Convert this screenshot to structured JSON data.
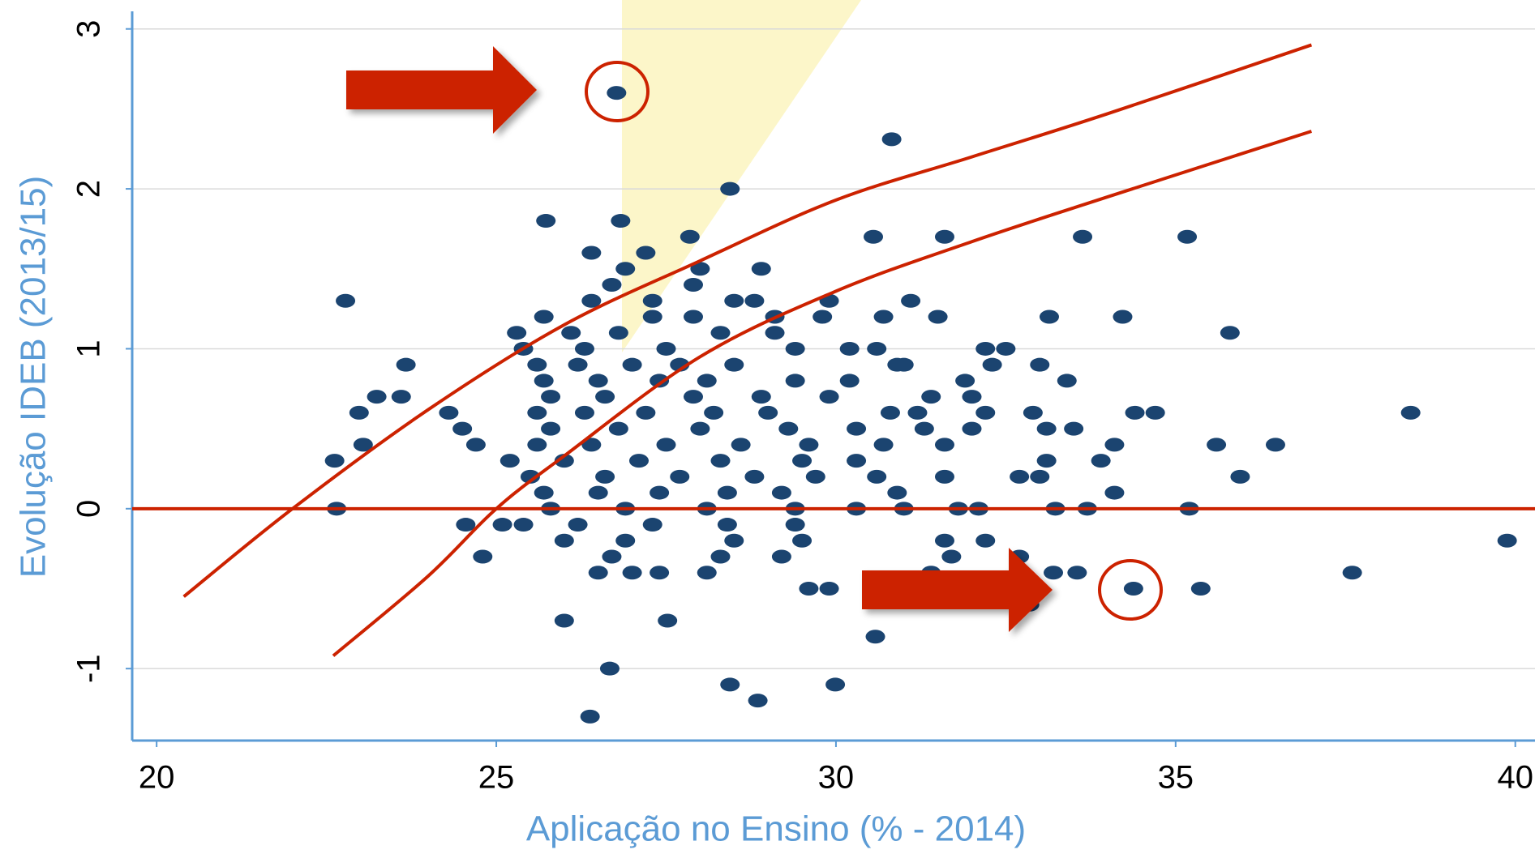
{
  "chart_data": {
    "type": "scatter",
    "x_label": "Aplicação no Ensino (% - 2014)",
    "y_label": "Evolução IDEB (2013/15)",
    "xlim": [
      19.64,
      40.29
    ],
    "ylim": [
      -1.45,
      3.11
    ],
    "xticks": [
      20,
      25,
      30,
      35,
      40
    ],
    "yticks": [
      -1,
      0,
      1,
      2,
      3
    ],
    "grid": true,
    "hline": {
      "value": 0,
      "color": "#cc2200"
    },
    "series": [
      {
        "type": "scatter",
        "color": "#1b4470",
        "x": [
          26.77,
          30.82,
          28.44,
          25.73,
          26.83,
          22.78,
          30.55,
          31.6,
          33.63,
          35.17,
          35.8,
          38.46,
          39.88,
          37.6,
          34.38,
          35.37,
          30.58,
          29.99,
          28.44,
          28.85,
          26.38,
          26.67,
          26.0,
          27.52,
          36.47,
          35.6,
          35.95,
          34.7,
          34.4,
          34.22,
          33.14,
          23.67,
          23.24,
          23.6,
          22.98,
          23.04,
          22.62,
          22.65,
          24.8,
          24.55,
          25.09,
          35.2,
          33.23,
          33.7,
          33.2,
          33.55,
          32.85,
          26.4,
          27.2,
          27.85,
          26.9,
          28.9,
          28.0,
          26.7,
          27.9,
          28.5,
          28.8,
          29.9,
          26.4,
          27.3,
          31.1,
          25.7,
          27.3,
          27.9,
          29.1,
          29.8,
          30.7,
          31.5,
          25.3,
          26.1,
          26.8,
          28.3,
          29.1,
          25.4,
          26.3,
          27.5,
          29.4,
          30.2,
          30.6,
          32.2,
          32.5,
          32.3,
          33.0,
          30.9,
          31.0,
          25.6,
          26.2,
          27.0,
          27.7,
          28.5,
          25.7,
          26.5,
          27.4,
          28.1,
          29.4,
          30.2,
          31.9,
          33.4,
          25.8,
          26.6,
          27.9,
          28.9,
          29.9,
          31.4,
          32.0,
          24.3,
          25.6,
          26.3,
          27.2,
          28.2,
          29.0,
          30.8,
          31.2,
          32.2,
          32.9,
          24.5,
          25.8,
          26.8,
          28.0,
          29.3,
          30.3,
          31.3,
          32.0,
          33.1,
          33.5,
          24.7,
          25.6,
          26.4,
          27.5,
          28.6,
          29.6,
          30.7,
          31.6,
          34.1,
          25.2,
          26.0,
          27.1,
          28.3,
          29.5,
          30.3,
          33.1,
          33.9,
          25.5,
          26.6,
          27.7,
          28.8,
          29.7,
          30.6,
          31.6,
          32.7,
          33.0,
          25.7,
          26.5,
          27.4,
          28.4,
          29.2,
          30.9,
          34.1,
          25.8,
          26.9,
          28.1,
          29.4,
          30.3,
          31.0,
          31.8,
          32.1,
          25.4,
          26.2,
          27.3,
          28.4,
          29.4,
          26.0,
          26.9,
          28.5,
          29.5,
          31.6,
          32.2,
          26.7,
          28.3,
          29.2,
          31.7,
          32.7,
          26.5,
          27.0,
          27.4,
          28.1,
          31.4,
          29.6,
          29.9
        ],
        "values": [
          2.6,
          2.31,
          2.0,
          1.8,
          1.8,
          1.3,
          1.7,
          1.7,
          1.7,
          1.7,
          1.1,
          0.6,
          -0.2,
          -0.4,
          -0.5,
          -0.5,
          -0.8,
          -1.1,
          -1.1,
          -1.2,
          -1.3,
          -1.0,
          -0.7,
          -0.7,
          0.4,
          0.4,
          0.2,
          0.6,
          0.6,
          1.2,
          1.2,
          0.9,
          0.7,
          0.7,
          0.6,
          0.4,
          0.3,
          0,
          -0.3,
          -0.1,
          -0.1,
          0,
          0,
          0,
          -0.4,
          -0.4,
          -0.6,
          1.6,
          1.6,
          1.7,
          1.5,
          1.5,
          1.5,
          1.4,
          1.4,
          1.3,
          1.3,
          1.3,
          1.3,
          1.3,
          1.3,
          1.2,
          1.2,
          1.2,
          1.2,
          1.2,
          1.2,
          1.2,
          1.1,
          1.1,
          1.1,
          1.1,
          1.1,
          1.0,
          1.0,
          1.0,
          1.0,
          1.0,
          1.0,
          1.0,
          1.0,
          0.9,
          0.9,
          0.9,
          0.9,
          0.9,
          0.9,
          0.9,
          0.9,
          0.9,
          0.8,
          0.8,
          0.8,
          0.8,
          0.8,
          0.8,
          0.8,
          0.8,
          0.7,
          0.7,
          0.7,
          0.7,
          0.7,
          0.7,
          0.7,
          0.6,
          0.6,
          0.6,
          0.6,
          0.6,
          0.6,
          0.6,
          0.6,
          0.6,
          0.6,
          0.5,
          0.5,
          0.5,
          0.5,
          0.5,
          0.5,
          0.5,
          0.5,
          0.5,
          0.5,
          0.4,
          0.4,
          0.4,
          0.4,
          0.4,
          0.4,
          0.4,
          0.4,
          0.4,
          0.3,
          0.3,
          0.3,
          0.3,
          0.3,
          0.3,
          0.3,
          0.3,
          0.2,
          0.2,
          0.2,
          0.2,
          0.2,
          0.2,
          0.2,
          0.2,
          0.2,
          0.1,
          0.1,
          0.1,
          0.1,
          0.1,
          0.1,
          0.1,
          0,
          0,
          0,
          0,
          0,
          0,
          0,
          0,
          -0.1,
          -0.1,
          -0.1,
          -0.1,
          -0.1,
          -0.2,
          -0.2,
          -0.2,
          -0.2,
          -0.2,
          -0.2,
          -0.3,
          -0.3,
          -0.3,
          -0.3,
          -0.3,
          -0.4,
          -0.4,
          -0.4,
          -0.4,
          -0.4,
          -0.5,
          -0.5
        ]
      },
      {
        "type": "line",
        "color": "#cc2200",
        "x": [
          20.4,
          22,
          24,
          26,
          28,
          30,
          32,
          34,
          37
        ],
        "values": [
          -0.55,
          0,
          0.62,
          1.15,
          1.55,
          1.93,
          2.2,
          2.47,
          2.9
        ]
      },
      {
        "type": "line",
        "color": "#cc2200",
        "x": [
          22.6,
          24,
          25,
          26,
          28,
          30,
          32,
          34,
          37
        ],
        "values": [
          -0.92,
          -0.42,
          0,
          0.33,
          0.95,
          1.36,
          1.67,
          1.95,
          2.36
        ]
      }
    ]
  }
}
